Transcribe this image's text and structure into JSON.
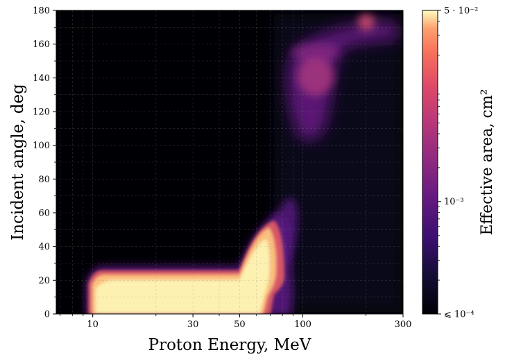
{
  "chart_data": {
    "type": "heatmap",
    "title": "",
    "xlabel": "Proton Energy, MeV",
    "ylabel": "Incident angle, deg",
    "x_scale": "log",
    "xlim": [
      6.7,
      300
    ],
    "ylim": [
      0,
      180
    ],
    "x_ticks": [
      {
        "value": 10,
        "label": "10"
      },
      {
        "value": 30,
        "label": "30"
      },
      {
        "value": 50,
        "label": "50"
      },
      {
        "value": 100,
        "label": "100"
      },
      {
        "value": 300,
        "label": "300"
      }
    ],
    "y_ticks": [
      {
        "value": 0,
        "label": "0"
      },
      {
        "value": 20,
        "label": "20"
      },
      {
        "value": 40,
        "label": "40"
      },
      {
        "value": 60,
        "label": "60"
      },
      {
        "value": 80,
        "label": "80"
      },
      {
        "value": 100,
        "label": "100"
      },
      {
        "value": 120,
        "label": "120"
      },
      {
        "value": 140,
        "label": "140"
      },
      {
        "value": 160,
        "label": "160"
      },
      {
        "value": 180,
        "label": "180"
      }
    ],
    "grid": true,
    "colormap": "magma",
    "background_color": "#000004",
    "colorbar": {
      "label": "Effective area, cm²",
      "scale": "log",
      "range": [
        0.0001,
        0.05
      ],
      "ticks": [
        {
          "value": 0.05,
          "label": "5 · 10⁻²"
        },
        {
          "value": 0.001,
          "label": "10⁻³"
        },
        {
          "value": 0.0001,
          "label": "⩽ 10⁻⁴"
        }
      ]
    },
    "regions": [
      {
        "energy_range": [
          10,
          70
        ],
        "angle_range": [
          0,
          25
        ],
        "effective_area": 0.045
      },
      {
        "energy_range": [
          50,
          75
        ],
        "angle_range": [
          25,
          48
        ],
        "effective_area": 0.03
      },
      {
        "energy_range": [
          70,
          85
        ],
        "angle_range": [
          0,
          20
        ],
        "effective_area": 0.0005
      },
      {
        "energy_range": [
          80,
          100
        ],
        "angle_range": [
          40,
          68
        ],
        "effective_area": 0.0008
      },
      {
        "energy_range": [
          95,
          170
        ],
        "angle_range": [
          110,
          160
        ],
        "effective_area": 0.001
      },
      {
        "energy_range": [
          110,
          130
        ],
        "angle_range": [
          130,
          150
        ],
        "effective_area": 0.002
      },
      {
        "energy_range": [
          185,
          220
        ],
        "angle_range": [
          168,
          180
        ],
        "effective_area": 0.004
      }
    ]
  }
}
